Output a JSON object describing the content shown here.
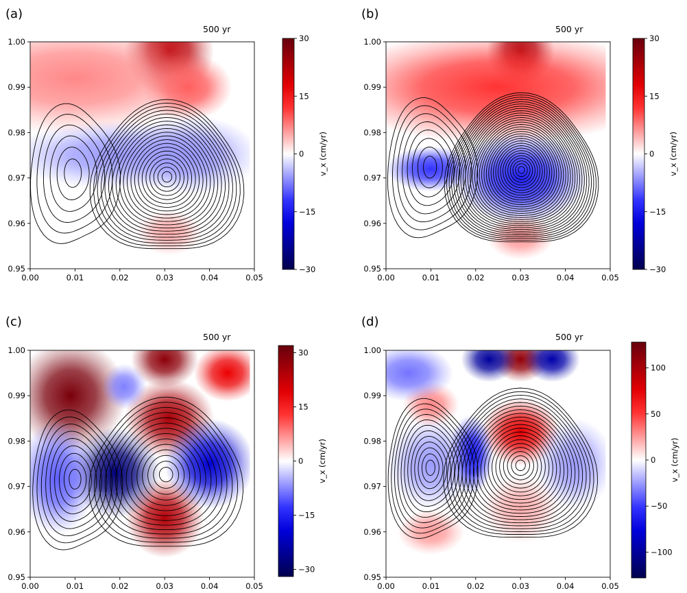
{
  "figure": {
    "panels": [
      {
        "label": "(a)",
        "time": "500",
        "time_unit": "yr"
      },
      {
        "label": "(b)",
        "time": "500",
        "time_unit": "yr"
      },
      {
        "label": "(c)",
        "time": "500",
        "time_unit": "yr"
      },
      {
        "label": "(d)",
        "time": "500",
        "time_unit": "yr"
      }
    ]
  },
  "colors": {
    "pos_max": "#67000d",
    "pos_mid": "#ff0000",
    "neutral": "#ffffff",
    "neg_mid": "#0000ff",
    "neg_max": "#00004d",
    "contour": "#000000"
  },
  "chart_data": [
    {
      "type": "heatmap",
      "panel": "(a)",
      "annotation": "500    yr",
      "x_ticks": [
        "0.00",
        "0.01",
        "0.02",
        "0.03",
        "0.04",
        "0.05"
      ],
      "y_ticks": [
        "0.95",
        "0.96",
        "0.97",
        "0.98",
        "0.99",
        "1.00"
      ],
      "xlim": [
        0,
        0.05
      ],
      "ylim": [
        0.95,
        1.0
      ],
      "colorbar": {
        "label": "v_x (cm/yr)",
        "range": [
          -30,
          30
        ],
        "ticks": [
          "30",
          "15",
          "0",
          "−15",
          "−30"
        ],
        "tick_values": [
          30,
          15,
          0,
          -15,
          -30
        ],
        "colormap": "seismic"
      },
      "field": {
        "peak_positive": {
          "x": 0.031,
          "y": 0.998
        },
        "peak_negative": {
          "x": 0.03,
          "y": 0.973
        },
        "blobs": [
          [
            0.031,
            0.998,
            0.008,
            0.008,
            22
          ],
          [
            0.035,
            0.99,
            0.008,
            0.006,
            10
          ],
          [
            0.01,
            0.992,
            0.025,
            0.01,
            7
          ],
          [
            0.02,
            0.975,
            0.02,
            0.006,
            -6
          ],
          [
            0.036,
            0.975,
            0.012,
            0.007,
            -6
          ],
          [
            0.031,
            0.958,
            0.006,
            0.004,
            5
          ]
        ]
      },
      "contours": {
        "centers": [
          {
            "x": 0.0305,
            "y": 0.9703,
            "count": 20
          },
          {
            "x": 0.0095,
            "y": 0.9712,
            "count": 6
          }
        ]
      }
    },
    {
      "type": "heatmap",
      "panel": "(b)",
      "annotation": "500    yr",
      "x_ticks": [
        "0.00",
        "0.01",
        "0.02",
        "0.03",
        "0.04",
        "0.05"
      ],
      "y_ticks": [
        "0.95",
        "0.96",
        "0.97",
        "0.98",
        "0.99",
        "1.00"
      ],
      "xlim": [
        0,
        0.05
      ],
      "ylim": [
        0.95,
        1.0
      ],
      "colorbar": {
        "label": "v_x (cm/yr)",
        "range": [
          -30,
          30
        ],
        "ticks": [
          "30",
          "15",
          "0",
          "−15",
          "−30"
        ],
        "tick_values": [
          30,
          15,
          0,
          -15,
          -30
        ],
        "colormap": "seismic"
      },
      "field": {
        "peak_positive": {
          "x": 0.03,
          "y": 0.998
        },
        "peak_negative": {
          "x": 0.03,
          "y": 0.97
        },
        "blobs": [
          [
            0.03,
            0.998,
            0.006,
            0.006,
            25
          ],
          [
            0.025,
            0.99,
            0.03,
            0.01,
            12
          ],
          [
            0.01,
            0.972,
            0.008,
            0.004,
            -12
          ],
          [
            0.03,
            0.97,
            0.012,
            0.008,
            -13
          ],
          [
            0.03,
            0.957,
            0.006,
            0.004,
            6
          ]
        ]
      },
      "contours": {
        "centers": [
          {
            "x": 0.0302,
            "y": 0.9718,
            "count": 32
          },
          {
            "x": 0.0098,
            "y": 0.9725,
            "count": 8
          }
        ]
      }
    },
    {
      "type": "heatmap",
      "panel": "(c)",
      "annotation": "500    yr",
      "x_ticks": [
        "0.00",
        "0.01",
        "0.02",
        "0.03",
        "0.04",
        "0.05"
      ],
      "y_ticks": [
        "0.95",
        "0.96",
        "0.97",
        "0.98",
        "0.99",
        "1.00"
      ],
      "xlim": [
        0,
        0.05
      ],
      "ylim": [
        0.95,
        1.0
      ],
      "colorbar": {
        "label": "v_x (cm/yr)",
        "range": [
          -32,
          32
        ],
        "ticks": [
          "30",
          "15",
          "0",
          "−15",
          "−30"
        ],
        "tick_values": [
          30,
          15,
          0,
          -15,
          -30
        ],
        "colormap": "seismic"
      },
      "field": {
        "peak_positive": {
          "x": 0.008,
          "y": 0.988
        },
        "peak_negative": {
          "x": 0.019,
          "y": 0.973
        },
        "blobs": [
          [
            0.009,
            0.99,
            0.01,
            0.01,
            30
          ],
          [
            0.031,
            0.985,
            0.008,
            0.007,
            25
          ],
          [
            0.03,
            0.963,
            0.007,
            0.007,
            24
          ],
          [
            0.03,
            0.998,
            0.006,
            0.005,
            28
          ],
          [
            0.044,
            0.995,
            0.006,
            0.005,
            18
          ],
          [
            0.019,
            0.973,
            0.008,
            0.008,
            -28
          ],
          [
            0.04,
            0.975,
            0.008,
            0.008,
            -20
          ],
          [
            0.006,
            0.972,
            0.007,
            0.01,
            -10
          ],
          [
            0.021,
            0.992,
            0.004,
            0.004,
            -8
          ]
        ]
      },
      "contours": {
        "centers": [
          {
            "x": 0.0303,
            "y": 0.9727,
            "count": 14
          },
          {
            "x": 0.01,
            "y": 0.9717,
            "count": 9
          }
        ]
      }
    },
    {
      "type": "heatmap",
      "panel": "(d)",
      "annotation": "500    yr",
      "x_ticks": [
        "0.00",
        "0.01",
        "0.02",
        "0.03",
        "0.04",
        "0.05"
      ],
      "y_ticks": [
        "0.95",
        "0.96",
        "0.97",
        "0.98",
        "0.99",
        "1.00"
      ],
      "xlim": [
        0,
        0.05
      ],
      "ylim": [
        0.95,
        1.0
      ],
      "colorbar": {
        "label": "v_x (cm/yr)",
        "range": [
          -128,
          128
        ],
        "ticks": [
          "100",
          "50",
          "0",
          "−50",
          "−100"
        ],
        "tick_values": [
          100,
          50,
          0,
          -50,
          -100
        ],
        "colormap": "seismic"
      },
      "field": {
        "peak_positive": {
          "x": 0.03,
          "y": 0.998
        },
        "peak_negative": {
          "x": 0.036,
          "y": 0.998
        },
        "blobs": [
          [
            0.03,
            0.998,
            0.005,
            0.004,
            110
          ],
          [
            0.03,
            0.982,
            0.007,
            0.006,
            75
          ],
          [
            0.03,
            0.965,
            0.007,
            0.006,
            20
          ],
          [
            0.01,
            0.988,
            0.005,
            0.004,
            30
          ],
          [
            0.01,
            0.96,
            0.006,
            0.004,
            25
          ],
          [
            0.023,
            0.998,
            0.005,
            0.004,
            -100
          ],
          [
            0.037,
            0.998,
            0.005,
            0.004,
            -95
          ],
          [
            0.019,
            0.977,
            0.004,
            0.007,
            -60
          ],
          [
            0.01,
            0.975,
            0.008,
            0.008,
            -25
          ],
          [
            0.042,
            0.975,
            0.007,
            0.008,
            -25
          ],
          [
            0.005,
            0.995,
            0.008,
            0.005,
            -35
          ]
        ]
      },
      "contours": {
        "centers": [
          {
            "x": 0.03,
            "y": 0.9747,
            "count": 20
          },
          {
            "x": 0.0099,
            "y": 0.9742,
            "count": 12
          }
        ]
      }
    }
  ]
}
